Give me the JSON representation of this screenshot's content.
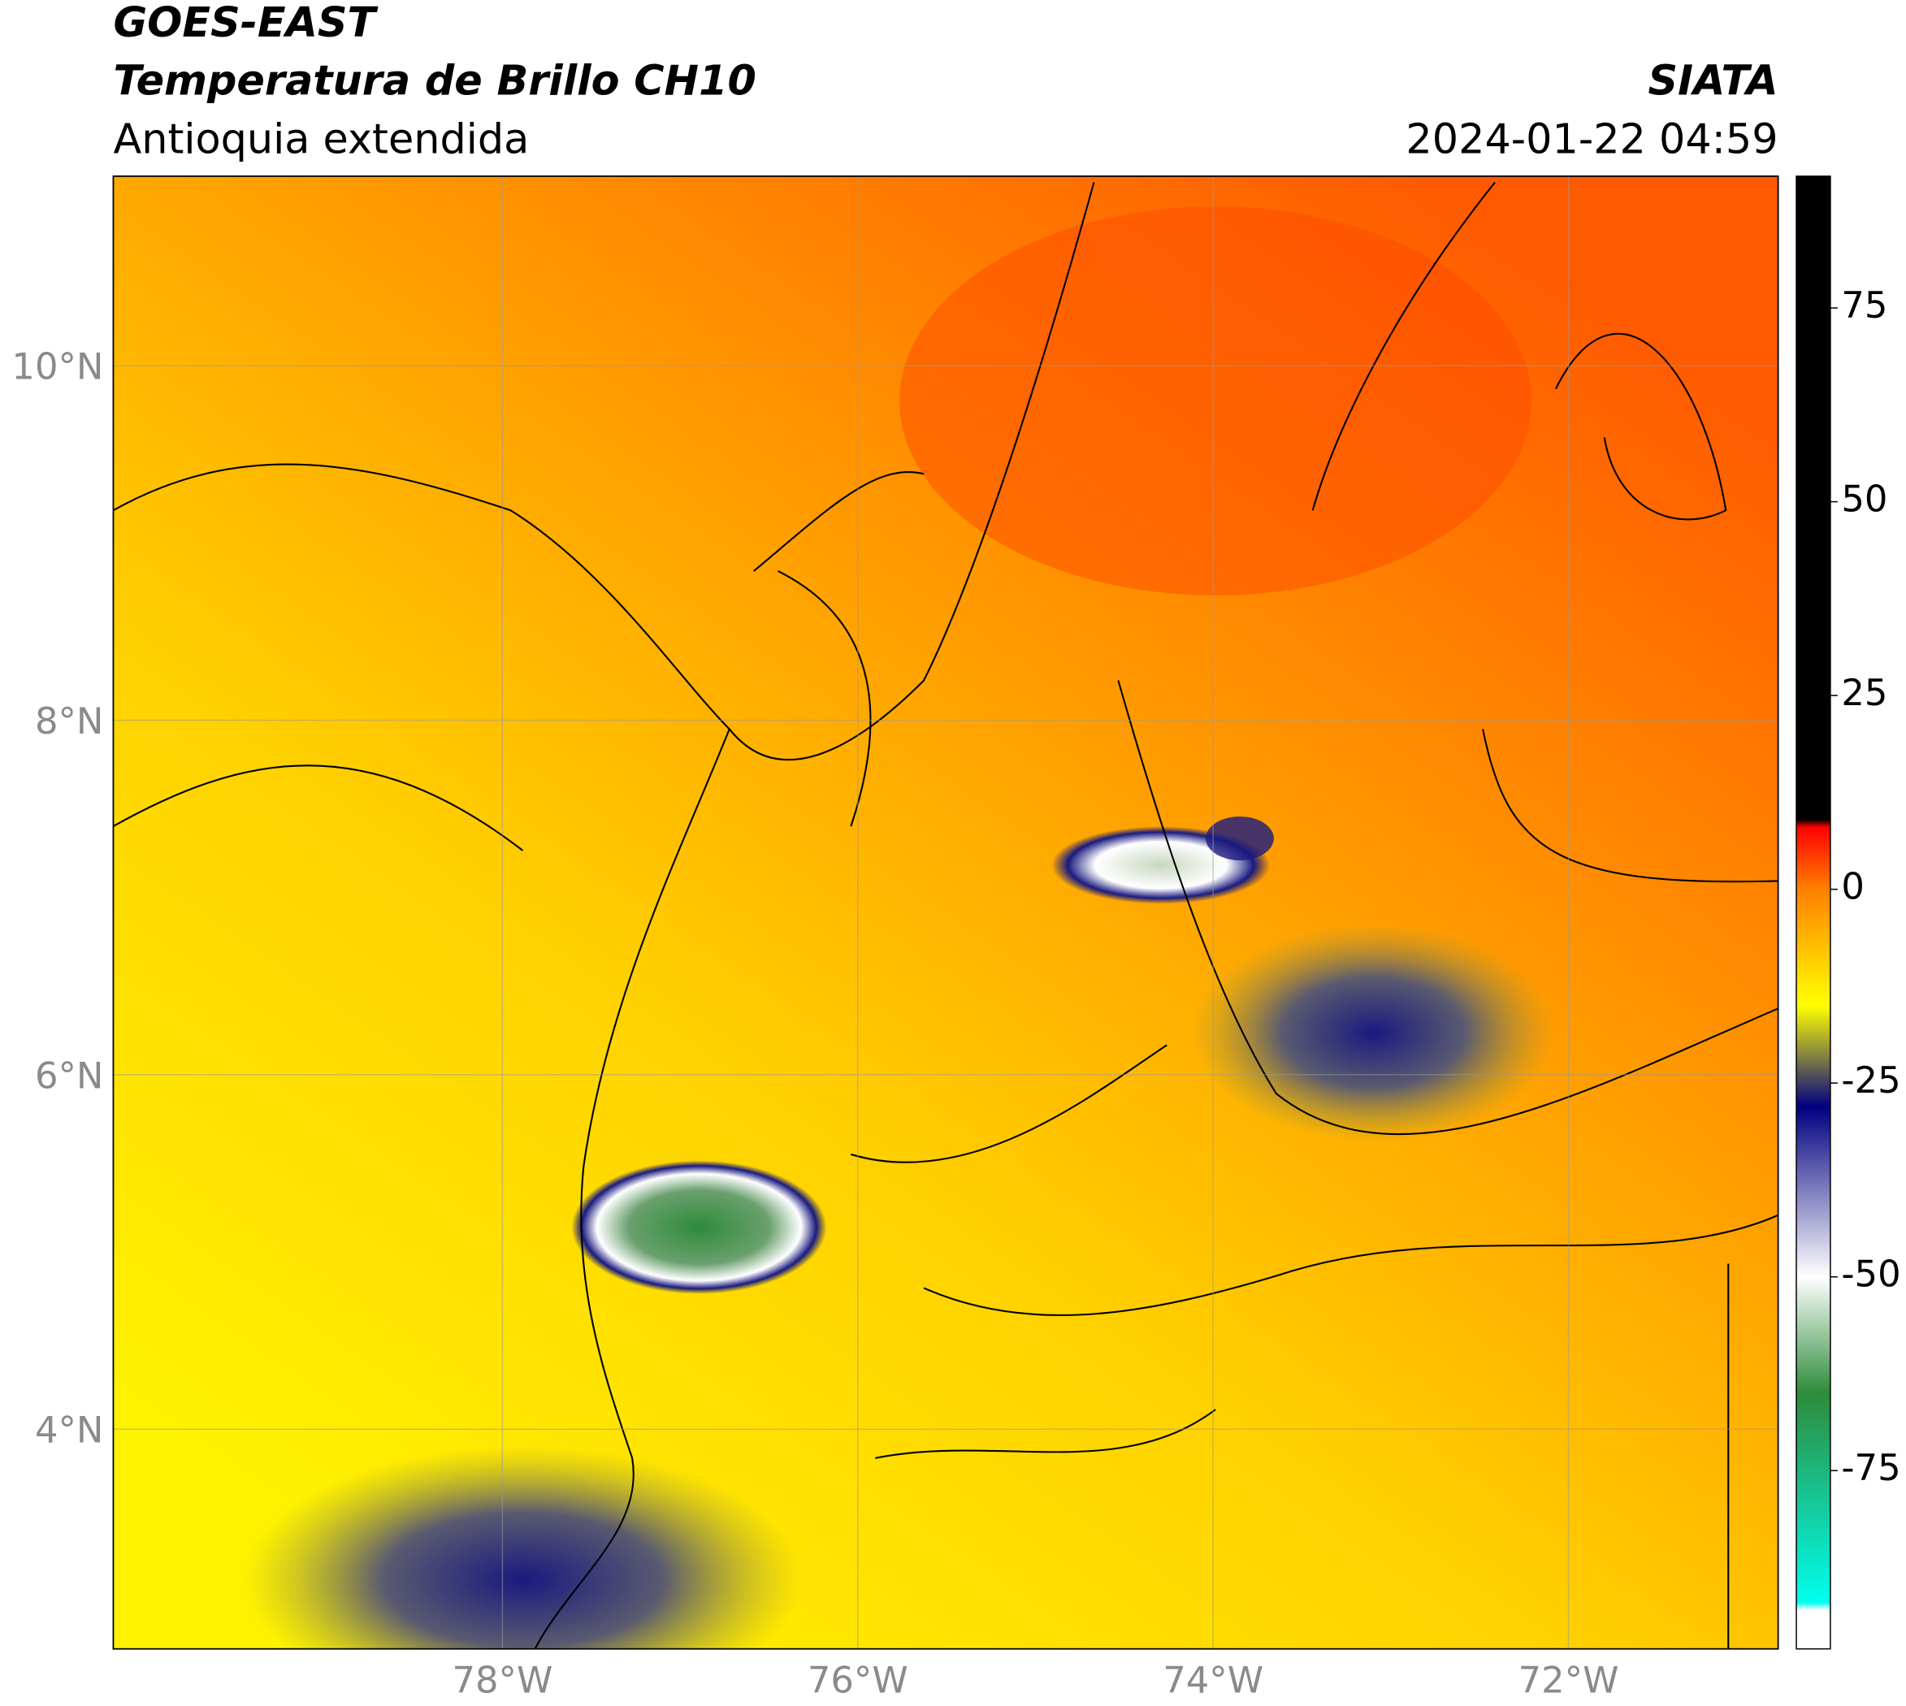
{
  "header": {
    "title": "GOES-EAST",
    "subtitle": "Temperatura de Brillo CH10",
    "region": "Antioquia extendida",
    "source": "SIATA",
    "datetime": "2024-01-22 04:59"
  },
  "map": {
    "lonlim": [
      -80.19,
      -70.82
    ],
    "latlim": [
      2.76,
      11.07
    ],
    "grid": true,
    "lonticks": [
      {
        "value": -78,
        "label": "78°W"
      },
      {
        "value": -76,
        "label": "76°W"
      },
      {
        "value": -74,
        "label": "74°W"
      },
      {
        "value": -72,
        "label": "72°W"
      }
    ],
    "latticks": [
      {
        "value": 10,
        "label": "10°N"
      },
      {
        "value": 8,
        "label": "8°N"
      },
      {
        "value": 6,
        "label": "6°N"
      },
      {
        "value": 4,
        "label": "4°N"
      }
    ]
  },
  "colorbar": {
    "lim": [
      -98,
      92
    ],
    "ticks": [
      75,
      50,
      25,
      0,
      -25,
      -50,
      -75
    ],
    "colors": [
      {
        "value": 92,
        "color": "#000000"
      },
      {
        "value": 9,
        "color": "#000000"
      },
      {
        "value": 8,
        "color": "#ff0000"
      },
      {
        "value": 0,
        "color": "#ff8000"
      },
      {
        "value": -15,
        "color": "#ffff00"
      },
      {
        "value": -21,
        "color": "#8c8c3c"
      },
      {
        "value": -28,
        "color": "#000080"
      },
      {
        "value": -50,
        "color": "#ffffff"
      },
      {
        "value": -65,
        "color": "#2e8b3a"
      },
      {
        "value": -92,
        "color": "#00ffee"
      },
      {
        "value": -93,
        "color": "#ffffff"
      },
      {
        "value": -98,
        "color": "#ffffff"
      }
    ]
  }
}
